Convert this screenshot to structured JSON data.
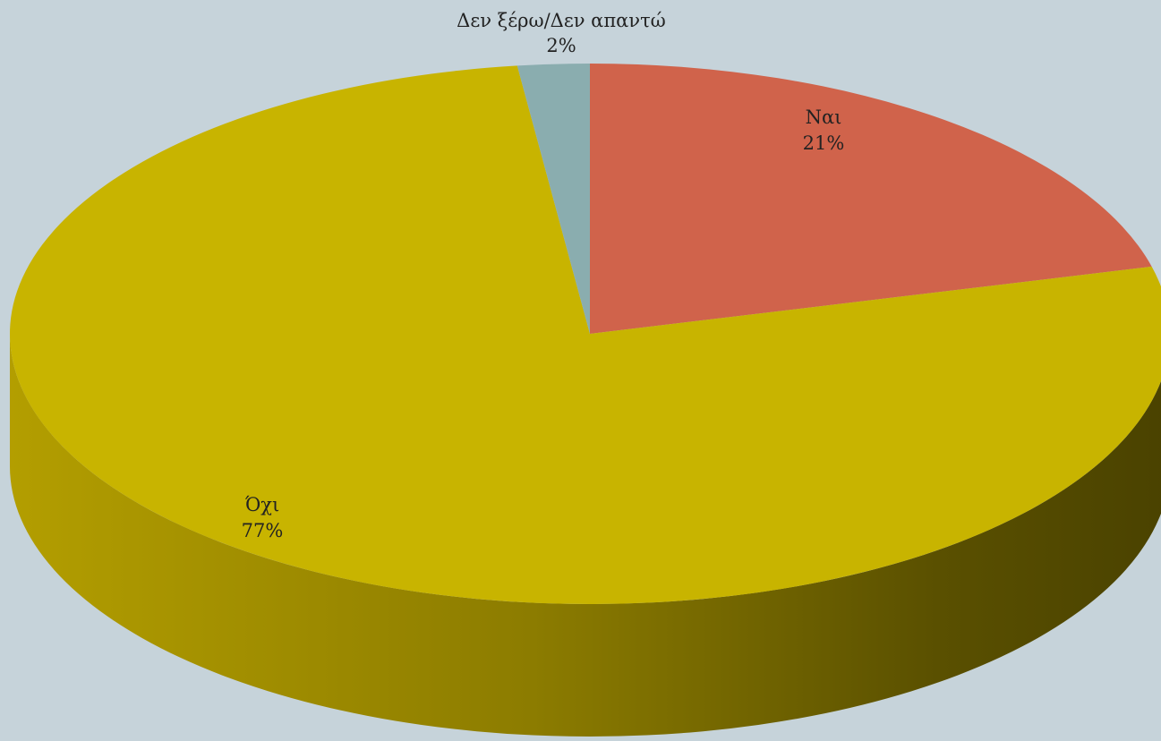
{
  "chart_data": {
    "type": "pie",
    "title": "",
    "categories": [
      "Ναι",
      "Όχι",
      "Δεν ξέρω/Δεν απαντώ"
    ],
    "values": [
      21,
      77,
      2
    ],
    "labels": [
      "21%",
      "77%",
      "2%"
    ],
    "colors": [
      "#D0634B",
      "#C8B400",
      "#8AADAF"
    ],
    "background": "#C6D3DA",
    "style": "3D pie",
    "legend": "none"
  }
}
